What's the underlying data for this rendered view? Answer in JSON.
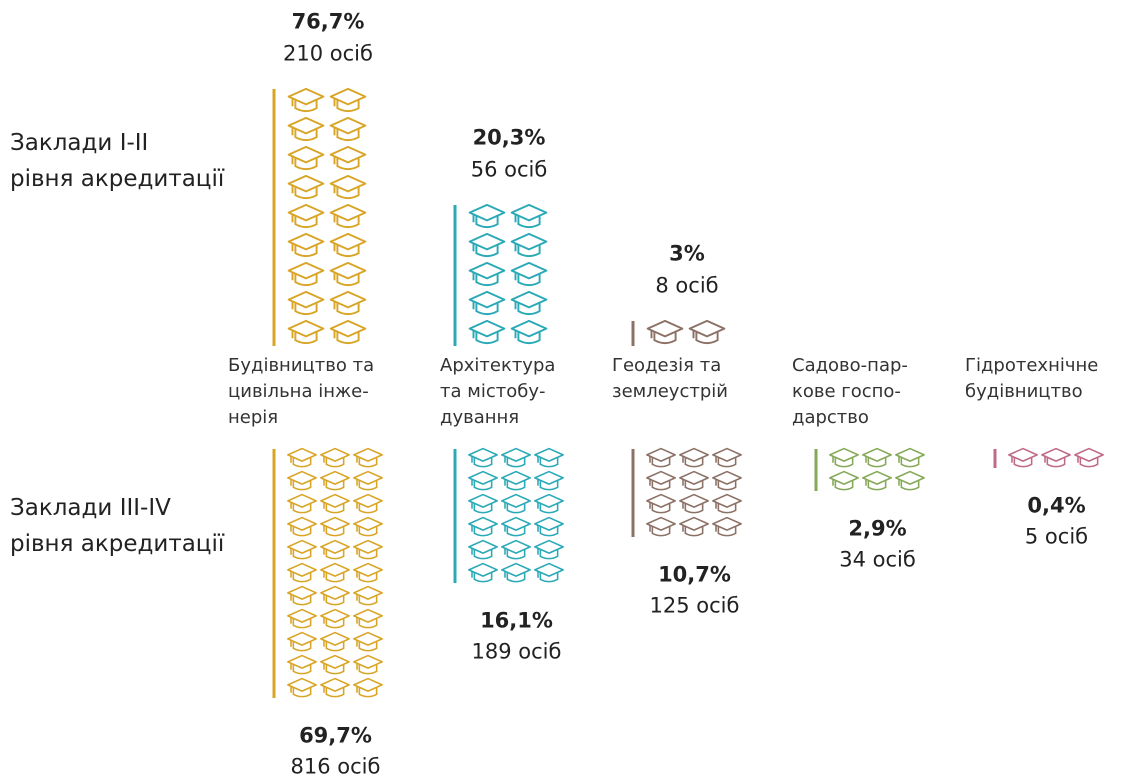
{
  "chart_data": {
    "type": "pictogram",
    "categories": [
      "Будівництво та\nцивільна інже-\nнерія",
      "Архітектура\nта містобу-\nдування",
      "Геодезія та\nземлеустрій",
      "Садово-пар-\nкове госпо-\nдарство",
      "Гідротехнічне\nбудівництво"
    ],
    "colors": [
      "#d9a526",
      "#2aa9b7",
      "#8c7166",
      "#86a958",
      "#bf6a88"
    ],
    "series": [
      {
        "name": "Заклади I-II\nрівня акредитації",
        "values": [
          76.7,
          20.3,
          3,
          null,
          null
        ],
        "value_labels": [
          "76,7%",
          "20,3%",
          "3%",
          null,
          null
        ],
        "count_labels": [
          "210 осіб",
          "56 осіб",
          "8 осіб",
          null,
          null
        ],
        "icons": [
          18,
          10,
          2,
          null,
          null
        ]
      },
      {
        "name": "Заклади III-IV\nрівня акредитації",
        "values": [
          69.7,
          16.1,
          10.7,
          2.9,
          0.4
        ],
        "value_labels": [
          "69,7%",
          "16,1%",
          "10,7%",
          "2,9%",
          "0,4%"
        ],
        "count_labels": [
          "816 осіб",
          "189 осіб",
          "125 осіб",
          "34 осіб",
          "5 осіб"
        ],
        "icons": [
          33,
          18,
          12,
          6,
          3
        ]
      }
    ]
  }
}
